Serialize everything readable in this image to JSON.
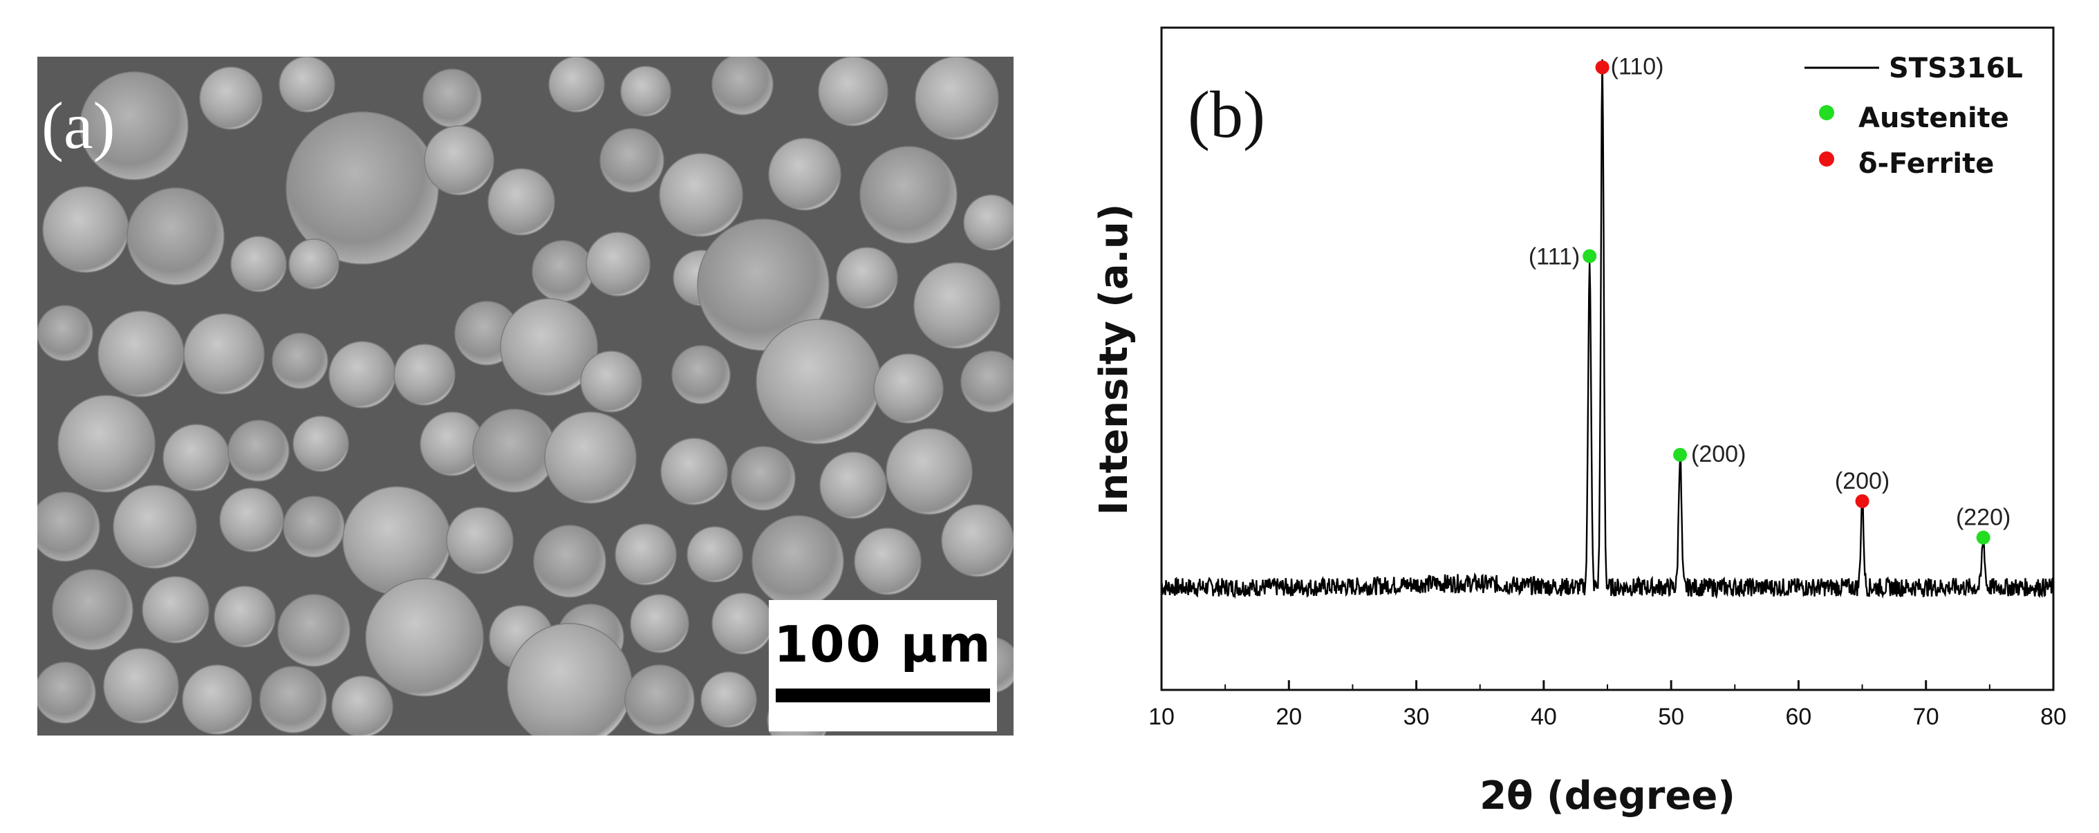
{
  "figure": {
    "sem_panel": {
      "panel_letter": "(a)",
      "scale_bar_label": "100 μm"
    },
    "xrd_panel": {
      "panel_letter": "(b)"
    }
  },
  "chart_data": {
    "type": "line",
    "title": "",
    "xlabel": "2θ (degree)",
    "ylabel": "Intensity (a.u)",
    "xlim": [
      10,
      80
    ],
    "ylim": [
      0,
      1
    ],
    "xticks": [
      10,
      20,
      30,
      40,
      50,
      60,
      70,
      80
    ],
    "y_tick_labels": false,
    "grid": false,
    "legend_position": "top-right",
    "series": [
      {
        "name": "STS316L",
        "color": "#000000",
        "baseline": 0.155,
        "peaks": [
          {
            "x": 43.6,
            "y": 0.655
          },
          {
            "x": 44.6,
            "y": 0.94
          },
          {
            "x": 50.7,
            "y": 0.355
          },
          {
            "x": 65.0,
            "y": 0.285
          },
          {
            "x": 74.5,
            "y": 0.23
          }
        ]
      }
    ],
    "markers": [
      {
        "name": "Austenite",
        "color": "#22dd22"
      },
      {
        "name": "δ-Ferrite",
        "color": "#ee1111"
      }
    ],
    "peak_labels": [
      {
        "text": "(111)",
        "x": 43.6,
        "y": 0.655,
        "phase": "Austenite"
      },
      {
        "text": "(110)",
        "x": 44.6,
        "y": 0.94,
        "phase": "δ-Ferrite"
      },
      {
        "text": "(200)",
        "x": 50.7,
        "y": 0.355,
        "phase": "Austenite"
      },
      {
        "text": "(200)",
        "x": 65.0,
        "y": 0.285,
        "phase": "δ-Ferrite"
      },
      {
        "text": "(220)",
        "x": 74.5,
        "y": 0.23,
        "phase": "Austenite"
      }
    ]
  }
}
